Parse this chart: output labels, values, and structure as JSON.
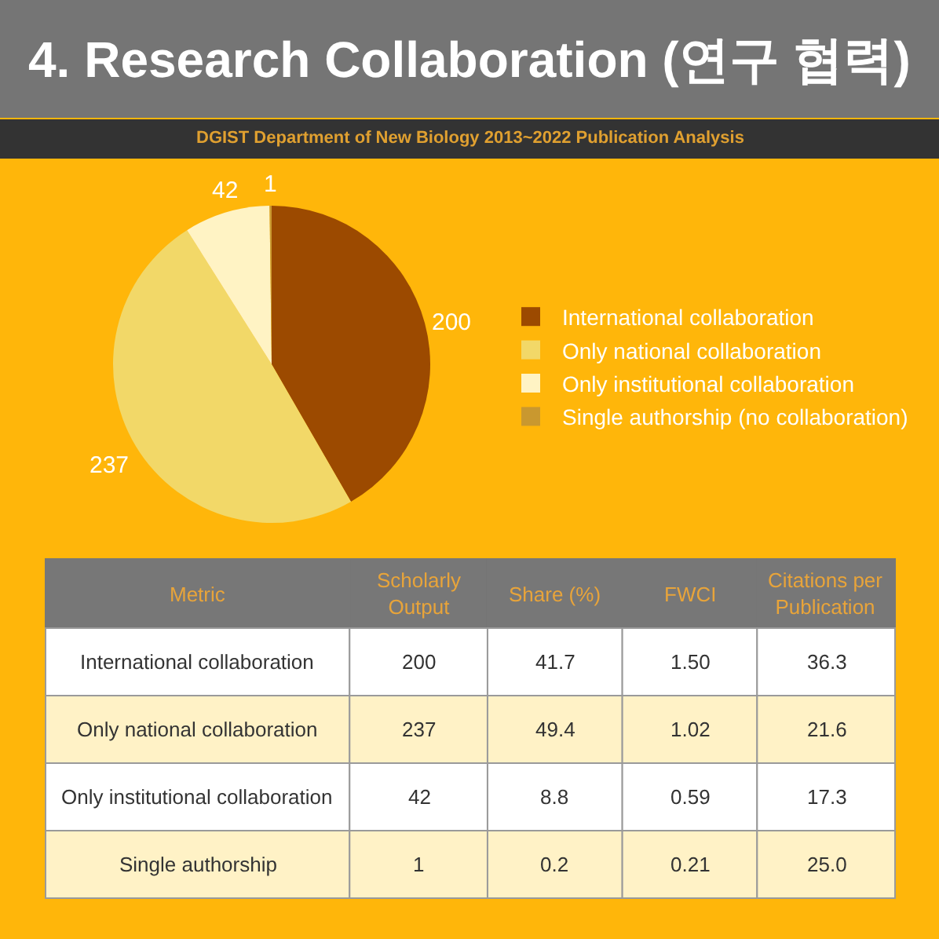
{
  "chart_data": [
    {
      "type": "pie",
      "title": "4. Research Collaboration (연구 협력)",
      "subtitle": "DGIST Department of New Biology 2013~2022 Publication Analysis",
      "categories": [
        "International collaboration",
        "Only national collaboration",
        "Only institutional collaboration",
        "Single authorship (no collaboration)"
      ],
      "values": [
        200,
        237,
        42,
        1
      ],
      "colors": [
        "#9c4a00",
        "#f2d868",
        "#fff3c4",
        "#c9982f"
      ],
      "data_labels": true,
      "legend": "right"
    },
    {
      "type": "other",
      "xlabel": "Metric",
      "categories": [
        "International collaboration",
        "Only national collaboration",
        "Only institutional collaboration",
        "Single authorship"
      ],
      "series": [
        {
          "name": "Scholarly Output",
          "colors": [
            "#ffffff",
            "#fff2c6",
            "#ffffff",
            "#fff2c6"
          ],
          "values": [
            200,
            237,
            42,
            1
          ]
        },
        {
          "name": "Share (%)",
          "colors": [
            "#ffffff",
            "#fff2c6",
            "#ffffff",
            "#fff2c6"
          ],
          "values": [
            41.7,
            49.4,
            8.8,
            0.2
          ]
        },
        {
          "name": "FWCI",
          "colors": [
            "#ffffff",
            "#fff2c6",
            "#ffffff",
            "#fff2c6"
          ],
          "values": [
            1.5,
            1.02,
            0.59,
            0.21
          ],
          "value_labels": [
            "1.50",
            "1.02",
            "0.59",
            "0.21"
          ]
        },
        {
          "name": "Citations per Publication",
          "colors": [
            "#ffffff",
            "#fff2c6",
            "#ffffff",
            "#fff2c6"
          ],
          "values": [
            36.3,
            21.6,
            17.3,
            25.0
          ],
          "value_labels": [
            "36.3",
            "21.6",
            "17.3",
            "25.0"
          ]
        }
      ],
      "data_labels": true
    }
  ]
}
